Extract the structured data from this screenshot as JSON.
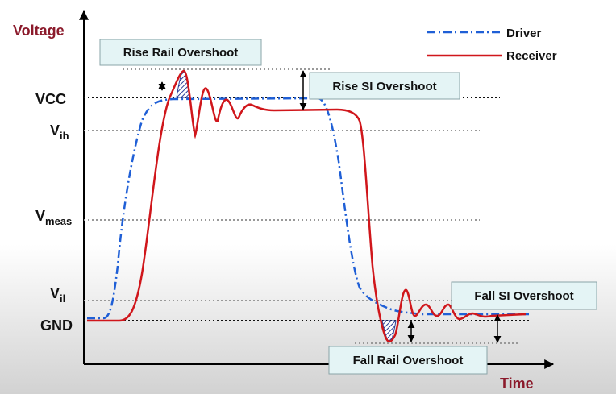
{
  "axes": {
    "y_title": "Voltage",
    "x_title": "Time"
  },
  "levels": {
    "vcc": {
      "text": "VCC"
    },
    "vih": {
      "main": "V",
      "sub": "ih"
    },
    "vmeas": {
      "main": "V",
      "sub": "meas"
    },
    "vil": {
      "main": "V",
      "sub": "il"
    },
    "gnd": {
      "text": "GND"
    }
  },
  "legend": {
    "driver": "Driver",
    "receiver": "Receiver"
  },
  "callouts": {
    "rise_rail": "Rise Rail Overshoot",
    "rise_si": "Rise SI Overshoot",
    "fall_si": "Fall SI Overshoot",
    "fall_rail": "Fall Rail Overshoot"
  },
  "colors": {
    "axis_title": "#8b1a2b",
    "driver": "#1f5fd6",
    "receiver": "#d0161b",
    "callout_fill": "#e4f4f5",
    "callout_border": "#8aa4a8",
    "hatch": "#2b3f9a"
  }
}
